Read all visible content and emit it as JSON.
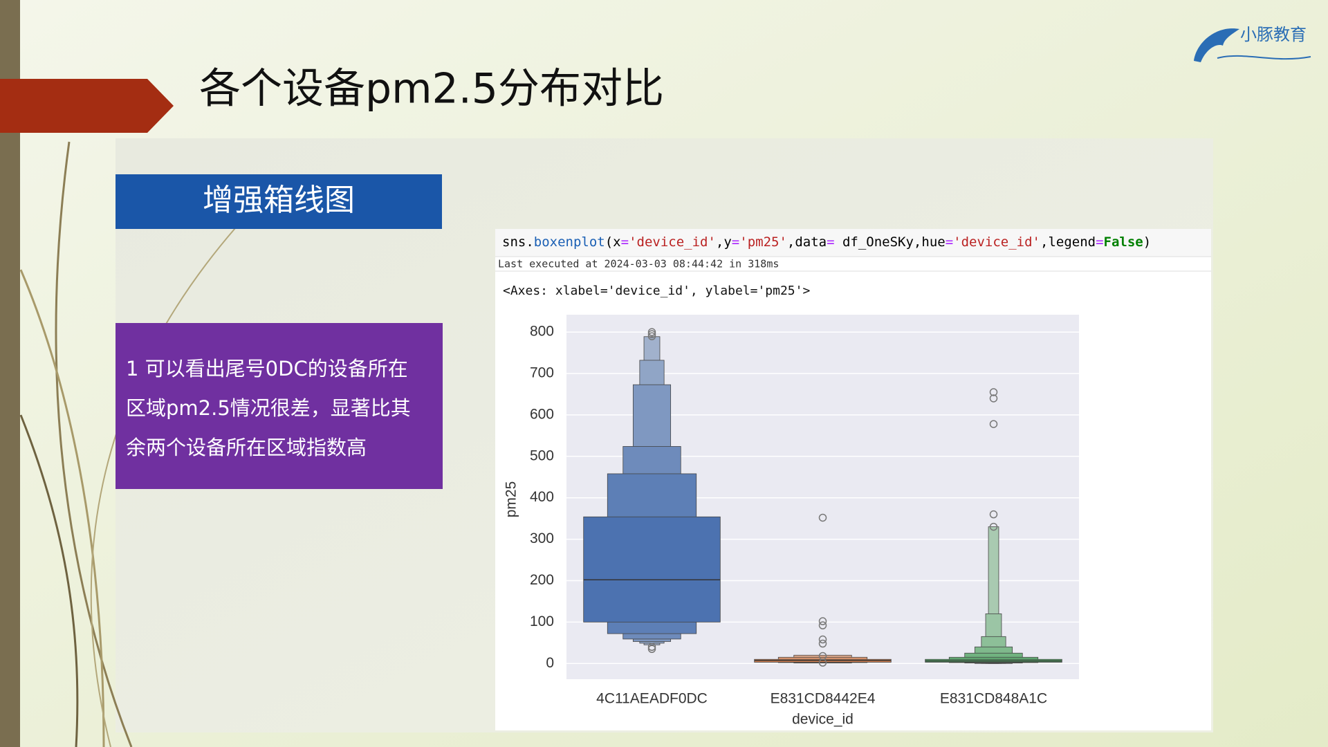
{
  "slide": {
    "title": "各个设备pm2.5分布对比",
    "logo": "小豚教育",
    "section_label": "增强箱线图",
    "description_lines": [
      "1 可以看出尾号0DC的设备所在",
      "区域pm2.5情况很差，显著比其",
      "余两个设备所在区域指数高"
    ],
    "code_tokens": [
      {
        "text": "sns.",
        "color": "#000000"
      },
      {
        "text": "boxenplot",
        "color": "#1a5fb4"
      },
      {
        "text": "(x",
        "color": "#000000"
      },
      {
        "text": "=",
        "color": "#aa22ff"
      },
      {
        "text": "'device_id'",
        "color": "#ba2121"
      },
      {
        "text": ",y",
        "color": "#000000"
      },
      {
        "text": "=",
        "color": "#aa22ff"
      },
      {
        "text": "'pm25'",
        "color": "#ba2121"
      },
      {
        "text": ",data",
        "color": "#000000"
      },
      {
        "text": "=",
        "color": "#aa22ff"
      },
      {
        "text": " df_OneSKy,hue",
        "color": "#000000"
      },
      {
        "text": "=",
        "color": "#aa22ff"
      },
      {
        "text": "'device_id'",
        "color": "#ba2121"
      },
      {
        "text": ",legend",
        "color": "#000000"
      },
      {
        "text": "=",
        "color": "#aa22ff"
      },
      {
        "text": "False",
        "color": "#008000"
      },
      {
        "text": ")",
        "color": "#000000"
      }
    ],
    "execution_note": "Last executed at 2024-03-03 08:44:42 in 318ms",
    "output_text": "<Axes: xlabel='device_id', ylabel='pm25'>"
  },
  "chart_data": {
    "type": "boxen",
    "xlabel": "device_id",
    "ylabel": "pm25",
    "categories": [
      "4C11AEADF0DC",
      "E831CD8442E4",
      "E831CD848A1C"
    ],
    "ylim": [
      -38,
      842
    ],
    "yticks": [
      0,
      100,
      200,
      300,
      400,
      500,
      600,
      700,
      800
    ],
    "grid": true,
    "boxes": [
      {
        "color": "#4c72b0",
        "median": 202,
        "levels": [
          [
            100,
            354
          ],
          [
            72,
            458
          ],
          [
            59,
            524
          ],
          [
            53,
            673
          ],
          [
            49,
            732
          ],
          [
            45,
            789
          ]
        ],
        "outliers": [
          800,
          795,
          790,
          40,
          35
        ]
      },
      {
        "color": "#dd8452",
        "median": 7,
        "levels": [
          [
            3,
            10
          ],
          [
            2,
            15
          ],
          [
            1,
            20
          ]
        ],
        "outliers": [
          352,
          102,
          92,
          58,
          48,
          18,
          2
        ]
      },
      {
        "color": "#55a868",
        "median": 6,
        "levels": [
          [
            3,
            10
          ],
          [
            2,
            15
          ],
          [
            1,
            25
          ],
          [
            0,
            40
          ],
          [
            0,
            65
          ],
          [
            0,
            120
          ],
          [
            0,
            330
          ]
        ],
        "outliers": [
          655,
          640,
          578,
          360,
          330
        ]
      }
    ]
  }
}
